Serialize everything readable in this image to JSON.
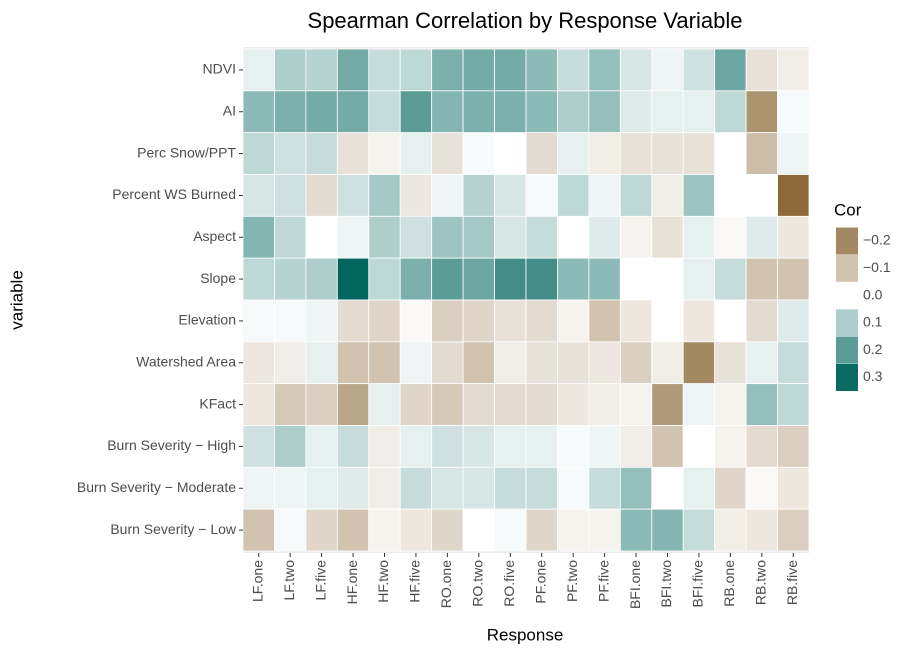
{
  "chart_data": {
    "type": "heatmap",
    "title": "Spearman Correlation by Response Variable",
    "xlabel": "Response",
    "ylabel": "variable",
    "legend_title": "Cor",
    "x": [
      "LF.one",
      "LF.two",
      "LF.five",
      "HF.one",
      "HF.two",
      "HF.five",
      "RO.one",
      "RO.two",
      "RO.five",
      "PF.one",
      "PF.two",
      "PF.five",
      "BFI.one",
      "BFI.two",
      "BFI.five",
      "RB.one",
      "RB.two",
      "RB.five"
    ],
    "y": [
      "NDVI",
      "AI",
      "Perc Snow/PPT",
      "Percent WS Burned",
      "Aspect",
      "Slope",
      "Elevation",
      "Watershed Area",
      "KFact",
      "Burn Severity − High",
      "Burn Severity − Moderate",
      "Burn Severity − Low"
    ],
    "values": [
      [
        0.03,
        0.1,
        0.09,
        0.17,
        0.07,
        0.08,
        0.16,
        0.17,
        0.17,
        0.14,
        0.07,
        0.13,
        0.05,
        0.02,
        0.06,
        0.18,
        -0.05,
        -0.03
      ],
      [
        0.14,
        0.16,
        0.17,
        0.17,
        0.07,
        0.2,
        0.15,
        0.16,
        0.16,
        0.14,
        0.1,
        0.13,
        0.04,
        0.03,
        0.03,
        0.08,
        -0.18,
        0.01
      ],
      [
        0.08,
        0.06,
        0.07,
        -0.05,
        -0.02,
        0.03,
        -0.05,
        0.01,
        0,
        -0.06,
        0.03,
        -0.03,
        -0.05,
        -0.05,
        -0.05,
        0,
        -0.11,
        0.02
      ],
      [
        0.05,
        0.06,
        -0.06,
        0.06,
        0.11,
        -0.04,
        0.02,
        0.09,
        0.05,
        0.01,
        0.08,
        0.02,
        0.08,
        -0.03,
        0.12,
        0,
        0,
        -0.25
      ],
      [
        0.15,
        0.08,
        0,
        0.02,
        0.1,
        0.06,
        0.12,
        0.11,
        0.05,
        0.07,
        0,
        0.04,
        -0.02,
        -0.05,
        0.03,
        -0.01,
        0.04,
        -0.04
      ],
      [
        0.08,
        0.09,
        0.1,
        0.31,
        0.08,
        0.16,
        0.2,
        0.18,
        0.23,
        0.23,
        0.14,
        0.14,
        0,
        0,
        0.03,
        0.07,
        -0.1,
        -0.1
      ],
      [
        0.01,
        0.01,
        0.02,
        -0.06,
        -0.07,
        -0.01,
        -0.08,
        -0.07,
        -0.05,
        -0.06,
        -0.02,
        -0.1,
        -0.04,
        0,
        -0.04,
        0,
        -0.06,
        0.04
      ],
      [
        -0.04,
        -0.03,
        0.03,
        -0.1,
        -0.1,
        0.02,
        -0.06,
        -0.1,
        -0.03,
        -0.05,
        -0.05,
        -0.04,
        -0.08,
        -0.03,
        -0.2,
        -0.05,
        0.03,
        0.07
      ],
      [
        -0.04,
        -0.09,
        -0.08,
        -0.15,
        0.03,
        -0.07,
        -0.09,
        -0.06,
        -0.06,
        -0.06,
        -0.04,
        -0.03,
        -0.02,
        -0.17,
        0.02,
        -0.02,
        0.13,
        0.08
      ],
      [
        0.06,
        0.1,
        0.03,
        0.07,
        -0.03,
        0.03,
        0.06,
        0.05,
        0.03,
        0.03,
        0.01,
        0.02,
        -0.03,
        -0.1,
        0,
        -0.02,
        -0.06,
        -0.08
      ],
      [
        0.02,
        0.02,
        0.03,
        0.04,
        -0.03,
        0.07,
        0.05,
        0.05,
        0.07,
        0.07,
        0.01,
        0.07,
        0.13,
        0,
        0.03,
        -0.07,
        -0.01,
        -0.04
      ],
      [
        -0.1,
        0.01,
        -0.07,
        -0.1,
        -0.02,
        -0.04,
        -0.07,
        0,
        0.01,
        -0.07,
        -0.02,
        -0.02,
        0.14,
        0.15,
        0.07,
        -0.03,
        -0.04,
        -0.08
      ]
    ],
    "color_low": "#8c6a3a",
    "color_mid": "#ffffff",
    "color_high": "#01665e",
    "color_limits": [
      -0.25,
      0.31
    ],
    "colorbar_ticks": [
      {
        "value": -0.2,
        "label": "−0.2"
      },
      {
        "value": -0.1,
        "label": "−0.1"
      },
      {
        "value": 0,
        "label": "0.0"
      },
      0.1,
      0.2,
      0.3
    ]
  }
}
